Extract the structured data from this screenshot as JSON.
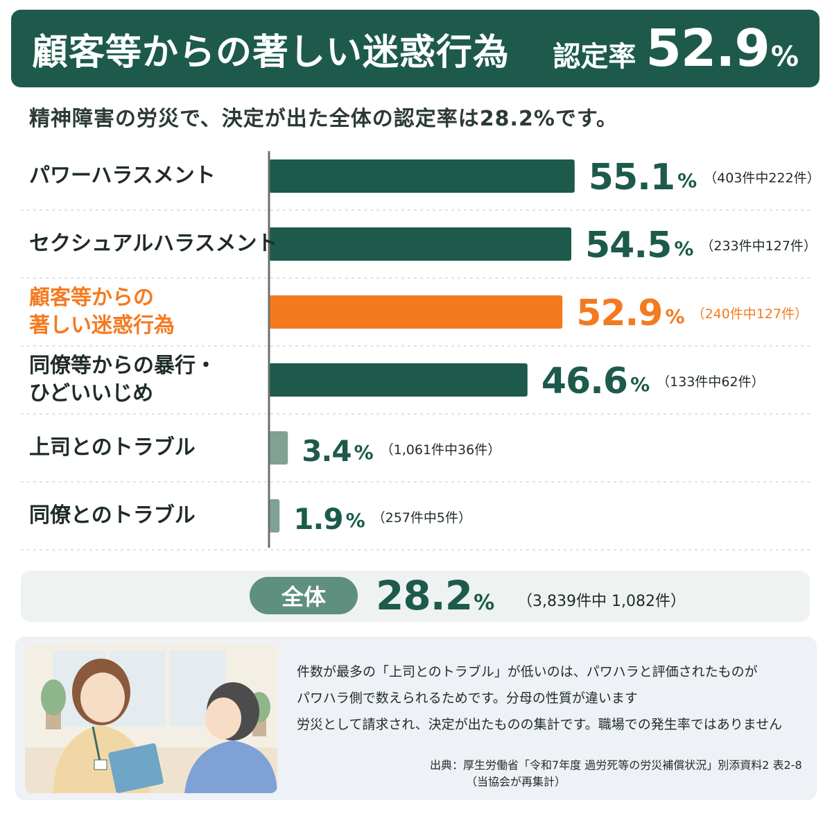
{
  "header": {
    "title": "顧客等からの著しい迷惑行為",
    "rate_label": "認定率",
    "rate_value": "52.9",
    "rate_unit": "%"
  },
  "subtitle": "精神障害の労災で、決定が出た全体の認定率は28.2%です。",
  "chart_data": {
    "type": "bar",
    "orientation": "horizontal",
    "xlim": [
      0,
      100
    ],
    "unit": "%",
    "categories": [
      [
        "パワーハラスメント"
      ],
      [
        "セクシュアルハラスメント"
      ],
      [
        "顧客等からの",
        "著しい迷惑行為"
      ],
      [
        "同僚等からの暴行・",
        "ひどいいじめ"
      ],
      [
        "上司とのトラブル"
      ],
      [
        "同僚とのトラブル"
      ]
    ],
    "values": [
      55.1,
      54.5,
      52.9,
      46.6,
      3.4,
      1.9
    ],
    "counts": [
      "（403件中222件）",
      "（233件中127件）",
      "（240件中127件）",
      "（133件中62件）",
      "（1,061件中36件）",
      "（257件中5件）"
    ],
    "highlight_index": 2,
    "colors": {
      "main": "#1d5a4b",
      "highlight": "#f47a20",
      "low": "#7fa293"
    }
  },
  "total": {
    "label": "全体",
    "value": "28.2",
    "unit": "%",
    "count": "（3,839件中 1,082件）"
  },
  "notes": [
    "件数が最多の「上司とのトラブル」が低いのは、パワハラと評価されたものが",
    "パワハラ側で数えられるためです。分母の性質が違います",
    "労災として請求され、決定が出たものの集計です。職場での発生率ではありません"
  ],
  "source": {
    "line1": "出典：厚生労働省「令和7年度 過労死等の労災補償状況」別添資料2 表2-8",
    "line2": "（当協会が再集計）"
  }
}
